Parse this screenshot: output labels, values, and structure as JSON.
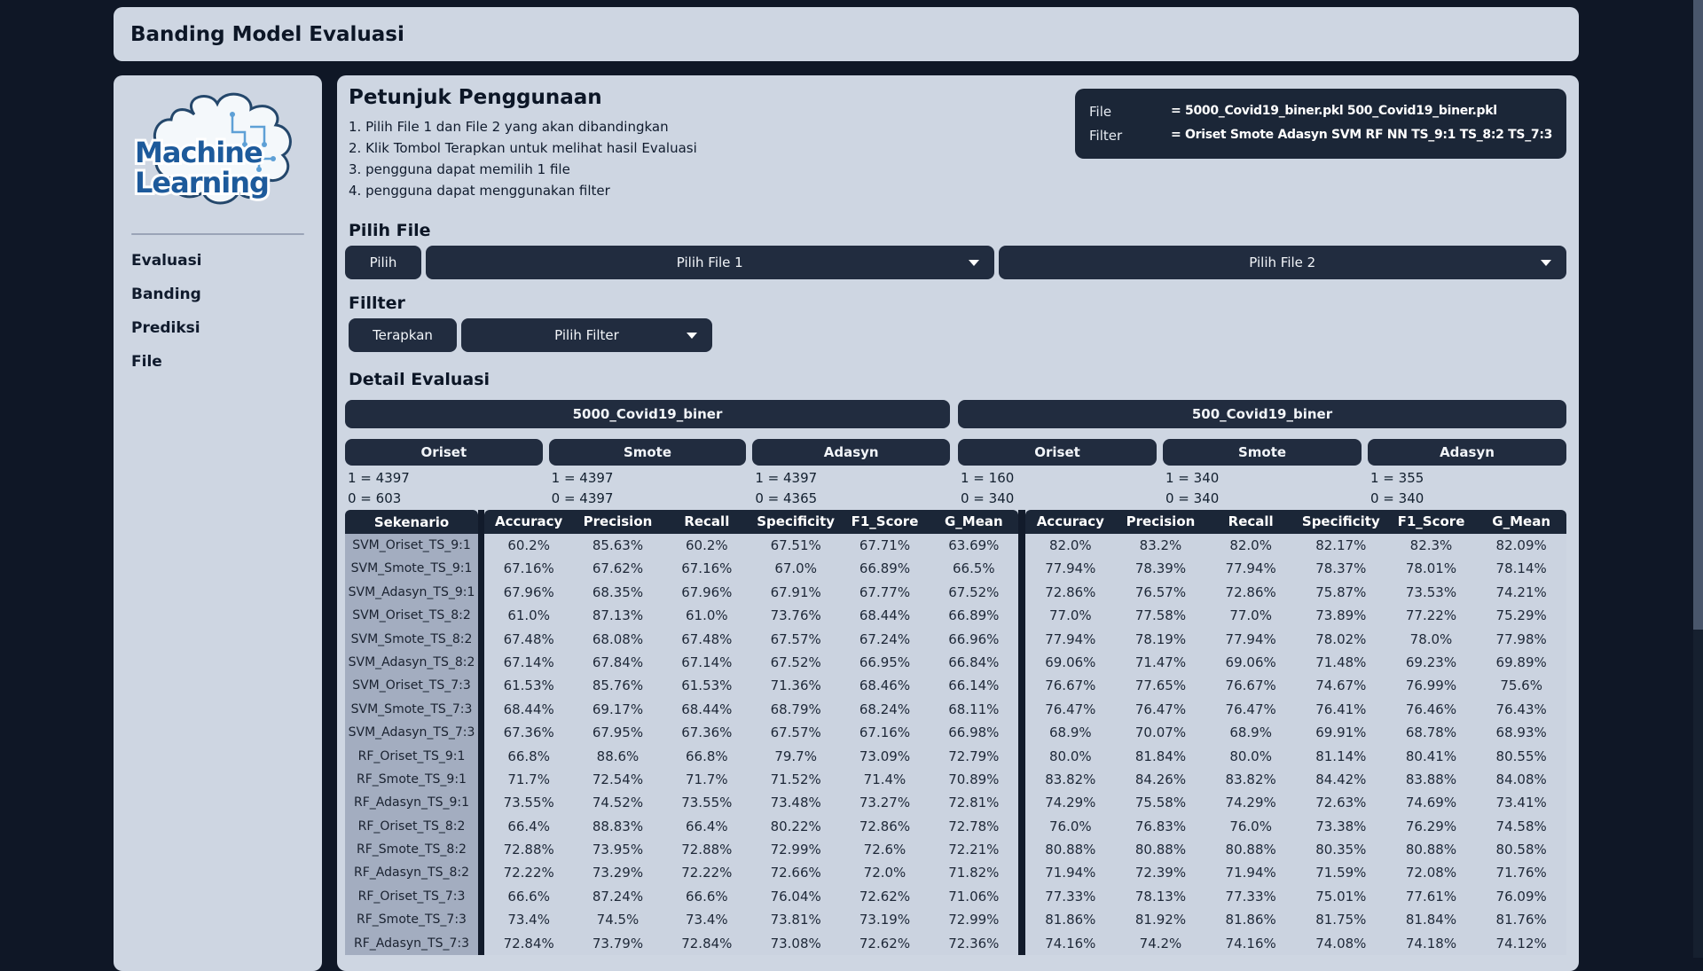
{
  "app": {
    "title": "Banding Model Evaluasi"
  },
  "sidebar": {
    "logo": {
      "line1": "Machine",
      "line2": "Learning"
    },
    "items": [
      {
        "label": "Evaluasi"
      },
      {
        "label": "Banding"
      },
      {
        "label": "Prediksi"
      },
      {
        "label": "File"
      }
    ]
  },
  "instructions": {
    "title": "Petunjuk Penggunaan",
    "steps": [
      "1. Pilih File 1 dan File 2 yang akan dibandingkan",
      "2. Klik Tombol Terapkan untuk melihat hasil Evaluasi",
      "3. pengguna dapat memilih 1 file",
      "4. pengguna dapat menggunakan filter"
    ]
  },
  "summary": {
    "file_label": "File",
    "file_value": "= 5000_Covid19_biner.pkl 500_Covid19_biner.pkl",
    "filter_label": "Filter",
    "filter_value": "= Oriset Smote Adasyn SVM RF NN TS_9:1 TS_8:2 TS_7:3"
  },
  "file_picker": {
    "heading": "Pilih File",
    "pilih_button": "Pilih",
    "file1_select": "Pilih File 1",
    "file2_select": "Pilih File 2"
  },
  "filter": {
    "heading": "Fillter",
    "apply_button": "Terapkan",
    "filter_select": "Pilih Filter"
  },
  "detail": {
    "heading": "Detail Evaluasi",
    "files": [
      {
        "name": "5000_Covid19_biner",
        "methods": [
          {
            "name": "Oriset",
            "pos": "1 = 4397",
            "neg": "0 = 603"
          },
          {
            "name": "Smote",
            "pos": "1 = 4397",
            "neg": "0 = 4397"
          },
          {
            "name": "Adasyn",
            "pos": "1 = 4397",
            "neg": "0 = 4365"
          }
        ]
      },
      {
        "name": "500_Covid19_biner",
        "methods": [
          {
            "name": "Oriset",
            "pos": "1 = 160",
            "neg": "0 = 340"
          },
          {
            "name": "Smote",
            "pos": "1 = 340",
            "neg": "0 = 340"
          },
          {
            "name": "Adasyn",
            "pos": "1 = 355",
            "neg": "0 = 340"
          }
        ]
      }
    ],
    "table": {
      "scenario_header": "Sekenario",
      "metric_headers": [
        "Accuracy",
        "Precision",
        "Recall",
        "Specificity",
        "F1_Score",
        "G_Mean"
      ],
      "rows": [
        {
          "scenario": "SVM_Oriset_TS_9:1",
          "file1": [
            "60.2%",
            "85.63%",
            "60.2%",
            "67.51%",
            "67.71%",
            "63.69%"
          ],
          "file2": [
            "82.0%",
            "83.2%",
            "82.0%",
            "82.17%",
            "82.3%",
            "82.09%"
          ]
        },
        {
          "scenario": "SVM_Smote_TS_9:1",
          "file1": [
            "67.16%",
            "67.62%",
            "67.16%",
            "67.0%",
            "66.89%",
            "66.5%"
          ],
          "file2": [
            "77.94%",
            "78.39%",
            "77.94%",
            "78.37%",
            "78.01%",
            "78.14%"
          ]
        },
        {
          "scenario": "SVM_Adasyn_TS_9:1",
          "file1": [
            "67.96%",
            "68.35%",
            "67.96%",
            "67.91%",
            "67.77%",
            "67.52%"
          ],
          "file2": [
            "72.86%",
            "76.57%",
            "72.86%",
            "75.87%",
            "73.53%",
            "74.21%"
          ]
        },
        {
          "scenario": "SVM_Oriset_TS_8:2",
          "file1": [
            "61.0%",
            "87.13%",
            "61.0%",
            "73.76%",
            "68.44%",
            "66.89%"
          ],
          "file2": [
            "77.0%",
            "77.58%",
            "77.0%",
            "73.89%",
            "77.22%",
            "75.29%"
          ]
        },
        {
          "scenario": "SVM_Smote_TS_8:2",
          "file1": [
            "67.48%",
            "68.08%",
            "67.48%",
            "67.57%",
            "67.24%",
            "66.96%"
          ],
          "file2": [
            "77.94%",
            "78.19%",
            "77.94%",
            "78.02%",
            "78.0%",
            "77.98%"
          ]
        },
        {
          "scenario": "SVM_Adasyn_TS_8:2",
          "file1": [
            "67.14%",
            "67.84%",
            "67.14%",
            "67.52%",
            "66.95%",
            "66.84%"
          ],
          "file2": [
            "69.06%",
            "71.47%",
            "69.06%",
            "71.48%",
            "69.23%",
            "69.89%"
          ]
        },
        {
          "scenario": "SVM_Oriset_TS_7:3",
          "file1": [
            "61.53%",
            "85.76%",
            "61.53%",
            "71.36%",
            "68.46%",
            "66.14%"
          ],
          "file2": [
            "76.67%",
            "77.65%",
            "76.67%",
            "74.67%",
            "76.99%",
            "75.6%"
          ]
        },
        {
          "scenario": "SVM_Smote_TS_7:3",
          "file1": [
            "68.44%",
            "69.17%",
            "68.44%",
            "68.79%",
            "68.24%",
            "68.11%"
          ],
          "file2": [
            "76.47%",
            "76.47%",
            "76.47%",
            "76.41%",
            "76.46%",
            "76.43%"
          ]
        },
        {
          "scenario": "SVM_Adasyn_TS_7:3",
          "file1": [
            "67.36%",
            "67.95%",
            "67.36%",
            "67.57%",
            "67.16%",
            "66.98%"
          ],
          "file2": [
            "68.9%",
            "70.07%",
            "68.9%",
            "69.91%",
            "68.78%",
            "68.93%"
          ]
        },
        {
          "scenario": "RF_Oriset_TS_9:1",
          "file1": [
            "66.8%",
            "88.6%",
            "66.8%",
            "79.7%",
            "73.09%",
            "72.79%"
          ],
          "file2": [
            "80.0%",
            "81.84%",
            "80.0%",
            "81.14%",
            "80.41%",
            "80.55%"
          ]
        },
        {
          "scenario": "RF_Smote_TS_9:1",
          "file1": [
            "71.7%",
            "72.54%",
            "71.7%",
            "71.52%",
            "71.4%",
            "70.89%"
          ],
          "file2": [
            "83.82%",
            "84.26%",
            "83.82%",
            "84.42%",
            "83.88%",
            "84.08%"
          ]
        },
        {
          "scenario": "RF_Adasyn_TS_9:1",
          "file1": [
            "73.55%",
            "74.52%",
            "73.55%",
            "73.48%",
            "73.27%",
            "72.81%"
          ],
          "file2": [
            "74.29%",
            "75.58%",
            "74.29%",
            "72.63%",
            "74.69%",
            "73.41%"
          ]
        },
        {
          "scenario": "RF_Oriset_TS_8:2",
          "file1": [
            "66.4%",
            "88.83%",
            "66.4%",
            "80.22%",
            "72.86%",
            "72.78%"
          ],
          "file2": [
            "76.0%",
            "76.83%",
            "76.0%",
            "73.38%",
            "76.29%",
            "74.58%"
          ]
        },
        {
          "scenario": "RF_Smote_TS_8:2",
          "file1": [
            "72.88%",
            "73.95%",
            "72.88%",
            "72.99%",
            "72.6%",
            "72.21%"
          ],
          "file2": [
            "80.88%",
            "80.88%",
            "80.88%",
            "80.35%",
            "80.88%",
            "80.58%"
          ]
        },
        {
          "scenario": "RF_Adasyn_TS_8:2",
          "file1": [
            "72.22%",
            "73.29%",
            "72.22%",
            "72.66%",
            "72.0%",
            "71.82%"
          ],
          "file2": [
            "71.94%",
            "72.39%",
            "71.94%",
            "71.59%",
            "72.08%",
            "71.76%"
          ]
        },
        {
          "scenario": "RF_Oriset_TS_7:3",
          "file1": [
            "66.6%",
            "87.24%",
            "66.6%",
            "76.04%",
            "72.62%",
            "71.06%"
          ],
          "file2": [
            "77.33%",
            "78.13%",
            "77.33%",
            "75.01%",
            "77.61%",
            "76.09%"
          ]
        },
        {
          "scenario": "RF_Smote_TS_7:3",
          "file1": [
            "73.4%",
            "74.5%",
            "73.4%",
            "73.81%",
            "73.19%",
            "72.99%"
          ],
          "file2": [
            "81.86%",
            "81.92%",
            "81.86%",
            "81.75%",
            "81.84%",
            "81.76%"
          ]
        },
        {
          "scenario": "RF_Adasyn_TS_7:3",
          "file1": [
            "72.84%",
            "73.79%",
            "72.84%",
            "73.08%",
            "72.62%",
            "72.36%"
          ],
          "file2": [
            "74.16%",
            "74.2%",
            "74.16%",
            "74.08%",
            "74.18%",
            "74.12%"
          ]
        }
      ]
    }
  }
}
